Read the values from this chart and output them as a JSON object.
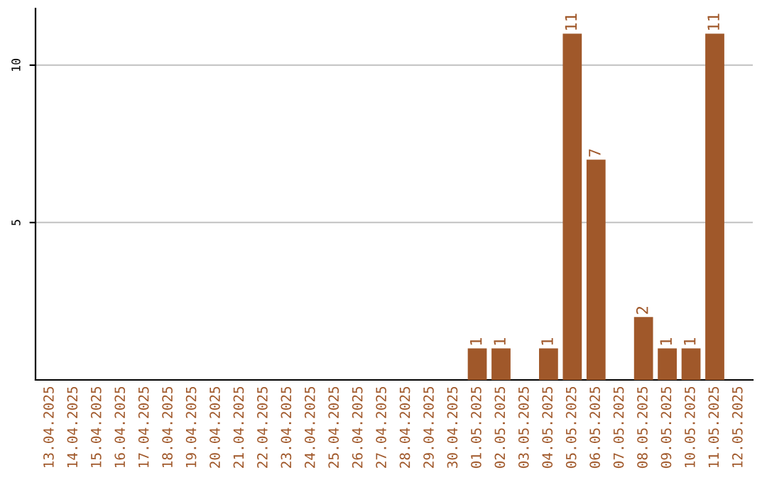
{
  "chart_data": {
    "type": "bar",
    "categories": [
      "13.04.2025",
      "14.04.2025",
      "15.04.2025",
      "16.04.2025",
      "17.04.2025",
      "18.04.2025",
      "19.04.2025",
      "20.04.2025",
      "21.04.2025",
      "22.04.2025",
      "23.04.2025",
      "24.04.2025",
      "25.04.2025",
      "26.04.2025",
      "27.04.2025",
      "28.04.2025",
      "29.04.2025",
      "30.04.2025",
      "01.05.2025",
      "02.05.2025",
      "03.05.2025",
      "04.05.2025",
      "05.05.2025",
      "06.05.2025",
      "07.05.2025",
      "08.05.2025",
      "09.05.2025",
      "10.05.2025",
      "11.05.2025",
      "12.05.2025"
    ],
    "series": [
      {
        "color": "#a0582a",
        "values": [
          0,
          0,
          0,
          0,
          0,
          0,
          0,
          0,
          0,
          0,
          0,
          0,
          0,
          0,
          0,
          0,
          0,
          0,
          1,
          1,
          0,
          1,
          11,
          7,
          0,
          2,
          1,
          1,
          11,
          0
        ],
        "value_labels": [
          null,
          null,
          null,
          null,
          null,
          null,
          null,
          null,
          null,
          null,
          null,
          null,
          null,
          null,
          null,
          null,
          null,
          null,
          "1",
          "1",
          null,
          "1",
          "11",
          "7",
          null,
          "2",
          "1",
          "1",
          "11",
          null
        ]
      }
    ],
    "ylim": [
      0,
      11.8
    ],
    "yticks": [
      5,
      10
    ],
    "grid": "y"
  }
}
